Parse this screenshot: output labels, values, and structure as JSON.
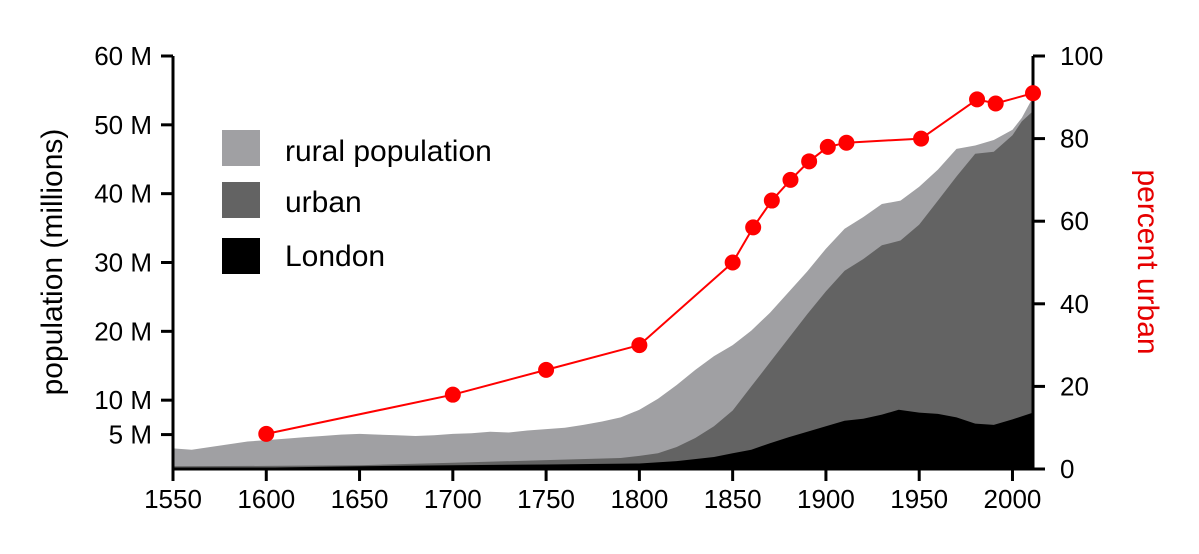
{
  "chart_data": {
    "type": "area",
    "title": "",
    "xlabel": "",
    "ylabel": "population (millions)",
    "y2label": "percent urban",
    "xlim": [
      1550,
      2011
    ],
    "ylim": [
      0,
      60
    ],
    "y2lim": [
      0,
      100
    ],
    "x_ticks": [
      1550,
      1600,
      1650,
      1700,
      1750,
      1800,
      1850,
      1900,
      1950,
      2000
    ],
    "y_ticks": [
      {
        "value": 5,
        "label": "5 M"
      },
      {
        "value": 10,
        "label": "10 M"
      },
      {
        "value": 20,
        "label": "20 M"
      },
      {
        "value": 30,
        "label": "30 M"
      },
      {
        "value": 40,
        "label": "40 M"
      },
      {
        "value": 50,
        "label": "50 M"
      },
      {
        "value": 60,
        "label": "60 M"
      }
    ],
    "y2_ticks": [
      0,
      20,
      40,
      60,
      80,
      100
    ],
    "legend_position": "upper-left",
    "colors": {
      "rural": "#a0a0a3",
      "urban": "#636363",
      "london": "#000000",
      "percent": "#ff0000",
      "axis": "#000000"
    },
    "series": [
      {
        "name": "rural population",
        "key": "rural",
        "note": "values are total population (stack top)",
        "x": [
          1550,
          1560,
          1570,
          1580,
          1590,
          1600,
          1610,
          1620,
          1630,
          1640,
          1650,
          1660,
          1670,
          1680,
          1690,
          1700,
          1710,
          1720,
          1730,
          1740,
          1750,
          1760,
          1770,
          1780,
          1790,
          1800,
          1810,
          1820,
          1830,
          1840,
          1850,
          1860,
          1870,
          1880,
          1890,
          1900,
          1910,
          1920,
          1930,
          1940,
          1950,
          1960,
          1970,
          1980,
          1990,
          2000,
          2005,
          2011
        ],
        "values": [
          3.0,
          2.8,
          3.2,
          3.6,
          4.0,
          4.2,
          4.4,
          4.6,
          4.8,
          5.0,
          5.1,
          5.0,
          4.9,
          4.8,
          4.9,
          5.1,
          5.2,
          5.4,
          5.3,
          5.6,
          5.8,
          6.0,
          6.4,
          6.9,
          7.5,
          8.6,
          10.2,
          12.2,
          14.4,
          16.4,
          18.0,
          20.1,
          22.7,
          25.7,
          28.7,
          32.0,
          34.9,
          36.6,
          38.5,
          39.0,
          41.0,
          43.5,
          46.5,
          47.0,
          47.8,
          49.3,
          51.0,
          54.0
        ]
      },
      {
        "name": "urban",
        "key": "urban",
        "x": [
          1550,
          1600,
          1650,
          1700,
          1750,
          1790,
          1800,
          1810,
          1820,
          1830,
          1840,
          1850,
          1860,
          1870,
          1880,
          1890,
          1900,
          1910,
          1920,
          1930,
          1940,
          1950,
          1960,
          1970,
          1980,
          1990,
          2000,
          2005,
          2011
        ],
        "values": [
          0.4,
          0.45,
          0.55,
          0.9,
          1.3,
          1.6,
          1.9,
          2.3,
          3.2,
          4.5,
          6.2,
          8.5,
          12.0,
          15.5,
          19.0,
          22.5,
          25.8,
          28.8,
          30.5,
          32.5,
          33.2,
          35.5,
          39.0,
          42.5,
          45.8,
          46.1,
          48.5,
          50.5,
          52.0
        ]
      },
      {
        "name": "London",
        "key": "london",
        "x": [
          1550,
          1600,
          1650,
          1700,
          1750,
          1800,
          1820,
          1840,
          1850,
          1860,
          1870,
          1880,
          1890,
          1900,
          1910,
          1920,
          1930,
          1939,
          1950,
          1960,
          1970,
          1980,
          1990,
          2000,
          2011
        ],
        "values": [
          0.1,
          0.2,
          0.4,
          0.55,
          0.65,
          0.8,
          1.15,
          1.75,
          2.3,
          2.8,
          3.75,
          4.6,
          5.4,
          6.2,
          7.0,
          7.3,
          7.9,
          8.6,
          8.2,
          8.0,
          7.5,
          6.6,
          6.4,
          7.2,
          8.2
        ]
      }
    ],
    "percent_urban": {
      "name": "percent urban",
      "x": [
        1600,
        1700,
        1750,
        1800,
        1850,
        1861,
        1871,
        1881,
        1891,
        1901,
        1911,
        1951,
        1981,
        1991,
        2011
      ],
      "values": [
        8.5,
        18.0,
        24.0,
        30.0,
        50.0,
        58.5,
        65.0,
        70.0,
        74.5,
        78.0,
        79.0,
        80.0,
        89.5,
        88.5,
        91.0
      ]
    }
  }
}
